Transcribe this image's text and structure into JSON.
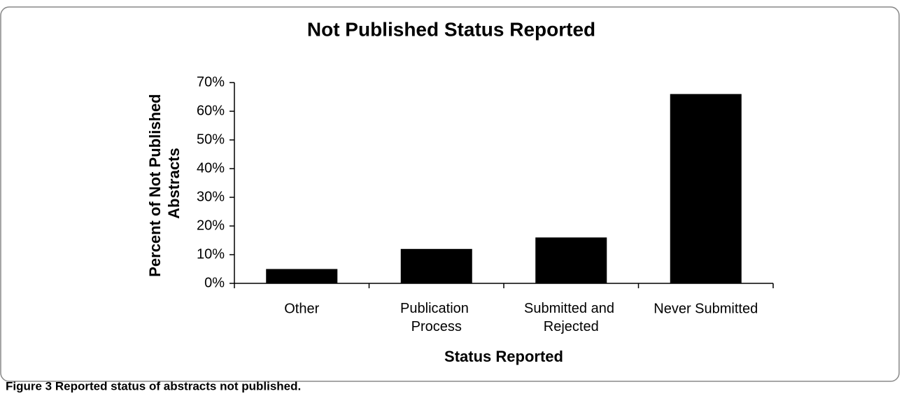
{
  "chart_data": {
    "type": "bar",
    "title": "Not Published Status Reported",
    "x_label": "Status Reported",
    "y_label": "Percent of Not Published Abstracts",
    "categories": [
      "Other",
      "Publication Process",
      "Submitted and Rejected",
      "Never Submitted"
    ],
    "values": [
      5,
      12,
      16,
      66
    ],
    "color": "#000000",
    "ylim": [
      0,
      70
    ],
    "yticks": [
      {
        "value": 0,
        "label": "0%"
      },
      {
        "value": 10,
        "label": "10%"
      },
      {
        "value": 20,
        "label": "20%"
      },
      {
        "value": 30,
        "label": "30%"
      },
      {
        "value": 40,
        "label": "40%"
      },
      {
        "value": 50,
        "label": "50%"
      },
      {
        "value": 60,
        "label": "60%"
      },
      {
        "value": 70,
        "label": "70%"
      }
    ],
    "grid": false
  },
  "caption": "Figure 3 Reported status of abstracts not published."
}
